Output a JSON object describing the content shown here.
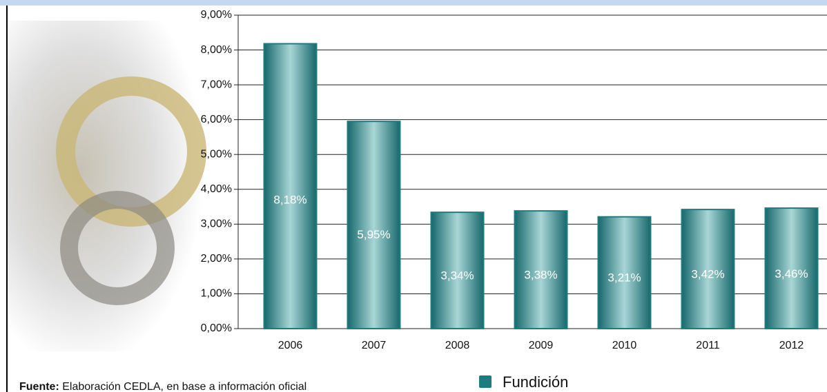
{
  "chart_data": {
    "type": "bar",
    "categories": [
      "2006",
      "2007",
      "2008",
      "2009",
      "2010",
      "2011",
      "2012"
    ],
    "series": [
      {
        "name": "Fundición",
        "color": "#1e7c80",
        "values": [
          8.18,
          5.95,
          3.34,
          3.38,
          3.21,
          3.42,
          3.46
        ],
        "value_labels": [
          "8,18%",
          "5,95%",
          "3,34%",
          "3,38%",
          "3,21%",
          "3,42%",
          "3,46%"
        ]
      }
    ],
    "ylim": [
      0,
      9
    ],
    "yticks": [
      {
        "value": 0,
        "label": "0,00%"
      },
      {
        "value": 1,
        "label": "1,00%"
      },
      {
        "value": 2,
        "label": "2,00%"
      },
      {
        "value": 3,
        "label": "3,00%"
      },
      {
        "value": 4,
        "label": "4,00%"
      },
      {
        "value": 5,
        "label": "5,00%"
      },
      {
        "value": 6,
        "label": "6,00%"
      },
      {
        "value": 7,
        "label": "7,00%"
      },
      {
        "value": 8,
        "label": "8,00%"
      },
      {
        "value": 9,
        "label": "9,00%"
      }
    ],
    "grid": true,
    "source_label": "Fuente:",
    "source": " Elaboración CEDLA, en base a información oficial"
  }
}
